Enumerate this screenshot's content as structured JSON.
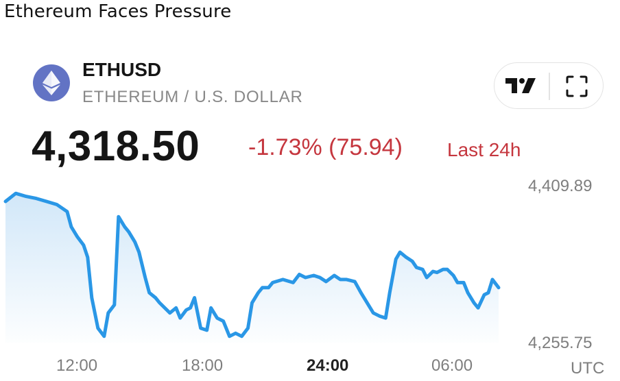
{
  "headline": "Ethereum Faces Pressure",
  "ticker": {
    "symbol": "ETHUSD",
    "name": "ETHEREUM / U.S. DOLLAR",
    "price": "4,318.50",
    "change": "-1.73% (75.94)",
    "change_period": "Last 24h",
    "icon": "ethereum-icon"
  },
  "toolbar": {
    "logo_icon": "tradingview-logo-icon",
    "fullscreen_icon": "fullscreen-icon"
  },
  "colors": {
    "line": "#2a97e6",
    "area_top": "#cfe6f8",
    "negative": "#c5363e",
    "coin_bg": "#6273c4"
  },
  "chart_data": {
    "type": "area",
    "title": "",
    "xlabel": "",
    "ylabel": "",
    "x_ticks": [
      "12:00",
      "18:00",
      "24:00",
      "06:00"
    ],
    "x_tick_bold": "24:00",
    "x_unit_label": "UTC",
    "y_ticks": [
      "4,409.89",
      "4,255.75"
    ],
    "ylim": [
      4255.75,
      4409.89
    ],
    "grid": false,
    "x_hours": [
      8.0,
      8.5,
      9.0,
      9.5,
      10.0,
      10.5,
      11.0,
      11.2,
      11.5,
      11.8,
      12.0,
      12.2,
      12.5,
      12.8,
      13.0,
      13.3,
      13.5,
      13.8,
      14.0,
      14.3,
      14.5,
      14.8,
      15.0,
      15.3,
      15.5,
      16.0,
      16.3,
      16.5,
      16.8,
      17.0,
      17.2,
      17.5,
      17.8,
      18.0,
      18.3,
      18.6,
      18.9,
      19.2,
      19.5,
      19.8,
      20.0,
      20.3,
      20.5,
      20.8,
      21.0,
      21.5,
      22.0,
      22.3,
      22.6,
      23.0,
      23.3,
      23.6,
      24.0,
      24.3,
      24.6,
      25.0,
      25.3,
      25.6,
      25.9,
      26.2,
      26.5,
      26.7,
      27.0,
      27.2,
      27.5,
      27.8,
      28.0,
      28.3,
      28.5,
      28.8,
      29.0,
      29.3,
      29.5,
      29.8,
      30.0,
      30.3,
      30.5,
      30.8,
      31.0,
      31.3,
      31.5,
      31.7,
      32.0
    ],
    "values": [
      4395,
      4403,
      4400,
      4398,
      4395,
      4392,
      4385,
      4370,
      4360,
      4352,
      4340,
      4300,
      4270,
      4262,
      4285,
      4293,
      4380,
      4370,
      4365,
      4355,
      4345,
      4320,
      4305,
      4300,
      4295,
      4285,
      4290,
      4280,
      4288,
      4290,
      4300,
      4270,
      4268,
      4290,
      4280,
      4277,
      4262,
      4265,
      4262,
      4270,
      4295,
      4305,
      4310,
      4310,
      4315,
      4318,
      4315,
      4323,
      4320,
      4322,
      4320,
      4316,
      4322,
      4318,
      4318,
      4316,
      4305,
      4295,
      4285,
      4282,
      4280,
      4305,
      4338,
      4345,
      4340,
      4336,
      4330,
      4328,
      4320,
      4326,
      4325,
      4328,
      4328,
      4322,
      4315,
      4315,
      4305,
      4295,
      4290,
      4303,
      4305,
      4318,
      4310
    ],
    "x_range_hours": [
      8,
      32.7
    ]
  }
}
